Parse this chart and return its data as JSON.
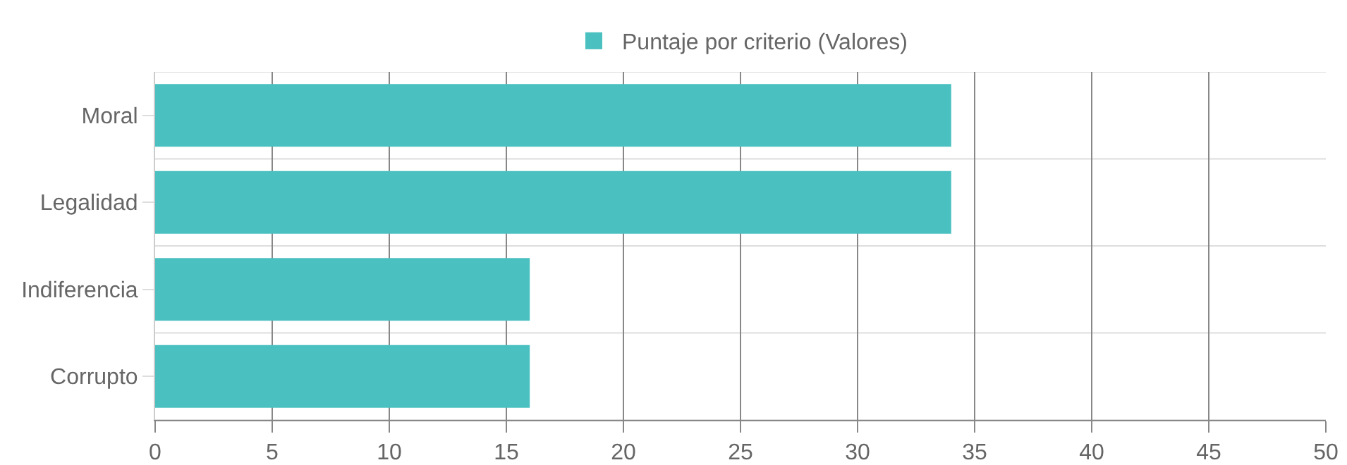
{
  "chart_data": {
    "type": "bar",
    "orientation": "horizontal",
    "categories": [
      "Moral",
      "Legalidad",
      "Indiferencia",
      "Corrupto"
    ],
    "series": [
      {
        "name": "Puntaje por criterio (Valores)",
        "color": "#4bc0c0",
        "values": [
          34,
          34,
          16,
          16
        ]
      }
    ],
    "xlim": [
      0,
      50
    ],
    "xticks": [
      0,
      5,
      10,
      15,
      20,
      25,
      30,
      35,
      40,
      45,
      50
    ],
    "grid": true,
    "legend": "top"
  }
}
